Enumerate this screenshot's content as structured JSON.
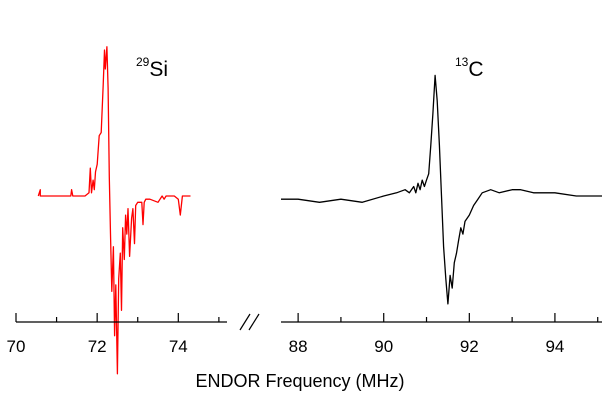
{
  "chart_data": {
    "type": "line",
    "xlabel": "ENDOR Frequency (MHz)",
    "ylabel": "",
    "title": "",
    "axis_break": true,
    "grid": false,
    "panels": [
      {
        "label_sup": "29",
        "label_main": "Si",
        "xlim": [
          70,
          75.2
        ],
        "ticks": [
          70,
          72,
          74
        ],
        "tick_labels": [
          "70",
          "72",
          "74"
        ],
        "series": [
          {
            "color": "#ff0000",
            "x": [
              70.55,
              70.6,
              70.6,
              70.65,
              71.0,
              71.35,
              71.37,
              71.4,
              71.5,
              71.6,
              71.7,
              71.8,
              71.83,
              71.86,
              71.9,
              71.93,
              71.96,
              72.0,
              72.05,
              72.1,
              72.15,
              72.18,
              72.2,
              72.24,
              72.27,
              72.3,
              72.33,
              72.36,
              72.4,
              72.43,
              72.46,
              72.5,
              72.53,
              72.57,
              72.6,
              72.63,
              72.67,
              72.7,
              72.73,
              72.76,
              72.8,
              72.85,
              72.88,
              72.92,
              72.95,
              73.0,
              73.1,
              73.13,
              73.16,
              73.2,
              73.3,
              73.5,
              73.6,
              73.65,
              73.7,
              73.8,
              73.9,
              74.0,
              74.05,
              74.1,
              74.15,
              74.2,
              74.3
            ],
            "y": [
              0.0,
              0.1,
              0.0,
              0.0,
              0.0,
              0.0,
              0.1,
              0.0,
              0.0,
              0.0,
              0.0,
              0.05,
              0.44,
              0.05,
              0.25,
              0.1,
              0.38,
              0.5,
              0.95,
              1.0,
              1.75,
              2.3,
              2.0,
              2.35,
              1.7,
              0.3,
              -0.6,
              -1.5,
              -0.8,
              -2.2,
              -1.4,
              -2.8,
              -1.3,
              -0.9,
              -1.8,
              -0.5,
              -1.0,
              -0.3,
              -0.6,
              -0.2,
              -0.95,
              -0.35,
              -0.2,
              -0.75,
              -0.15,
              -0.1,
              -0.1,
              -0.45,
              -0.1,
              -0.05,
              -0.05,
              -0.1,
              0.0,
              -0.05,
              0.0,
              0.0,
              0.0,
              -0.05,
              -0.3,
              0.0,
              0.0,
              0.0,
              0.0
            ]
          }
        ]
      },
      {
        "label_sup": "13",
        "label_main": "C",
        "xlim": [
          87.6,
          95.1
        ],
        "ticks": [
          88,
          90,
          92,
          94
        ],
        "tick_labels": [
          "88",
          "90",
          "92",
          "94"
        ],
        "series": [
          {
            "color": "#000000",
            "x": [
              87.6,
              88.0,
              88.5,
              89.0,
              89.5,
              90.0,
              90.3,
              90.5,
              90.6,
              90.7,
              90.75,
              90.8,
              90.85,
              90.9,
              90.95,
              91.0,
              91.05,
              91.1,
              91.15,
              91.2,
              91.25,
              91.3,
              91.35,
              91.4,
              91.45,
              91.5,
              91.55,
              91.6,
              91.65,
              91.7,
              91.75,
              91.8,
              91.85,
              91.9,
              92.0,
              92.1,
              92.2,
              92.3,
              92.5,
              92.7,
              93.0,
              93.2,
              93.5,
              94.0,
              94.5,
              95.1
            ],
            "y": [
              -0.05,
              -0.05,
              -0.1,
              -0.05,
              -0.1,
              0.0,
              0.05,
              0.1,
              0.05,
              0.15,
              0.05,
              0.2,
              0.1,
              0.25,
              0.15,
              0.25,
              0.35,
              0.8,
              1.3,
              1.9,
              1.5,
              0.8,
              0.0,
              -0.8,
              -1.3,
              -1.7,
              -1.25,
              -1.45,
              -1.05,
              -0.9,
              -0.7,
              -0.5,
              -0.6,
              -0.4,
              -0.3,
              -0.15,
              -0.05,
              0.05,
              0.1,
              0.05,
              0.1,
              0.1,
              0.05,
              0.05,
              0.0,
              0.0
            ]
          }
        ]
      }
    ]
  }
}
